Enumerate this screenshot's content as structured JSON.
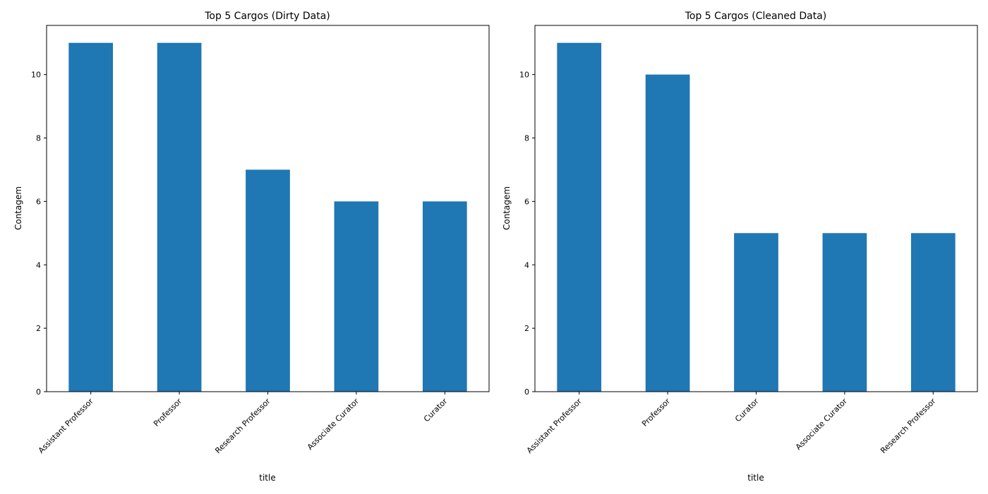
{
  "chart_data": [
    {
      "type": "bar",
      "title": "Top 5 Cargos (Dirty Data)",
      "xlabel": "title",
      "ylabel": "Contagem",
      "categories": [
        "Assistant Professor",
        "Professor",
        "Research Professor",
        "Associate Curator",
        "Curator"
      ],
      "values": [
        11,
        11,
        7,
        6,
        6
      ],
      "ylim": [
        0,
        11.55
      ],
      "yticks": [
        0,
        2,
        4,
        6,
        8,
        10
      ],
      "grid": false,
      "color": "#1f77b4"
    },
    {
      "type": "bar",
      "title": "Top 5 Cargos (Cleaned Data)",
      "xlabel": "title",
      "ylabel": "Contagem",
      "categories": [
        "Assistant Professor",
        "Professor",
        "Curator",
        "Associate Curator",
        "Research Professor"
      ],
      "values": [
        11,
        10,
        5,
        5,
        5
      ],
      "ylim": [
        0,
        11.55
      ],
      "yticks": [
        0,
        2,
        4,
        6,
        8,
        10
      ],
      "grid": false,
      "color": "#1f77b4"
    }
  ]
}
